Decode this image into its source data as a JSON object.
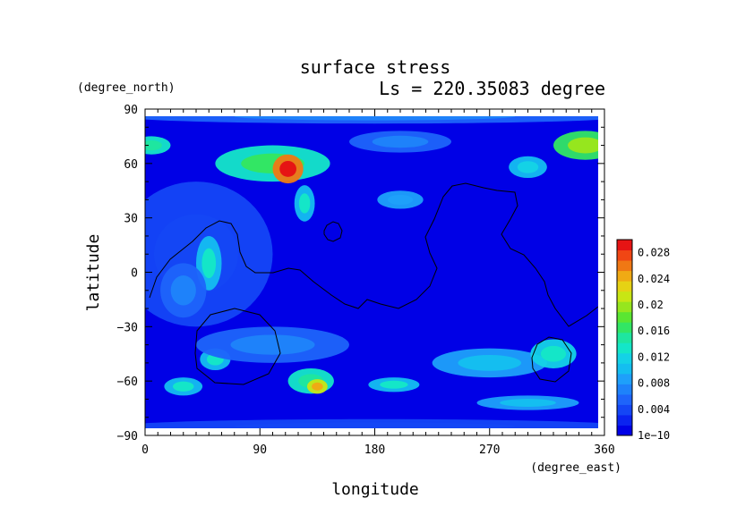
{
  "chart_data": {
    "type": "heatmap",
    "title": "surface stress",
    "subtitle": "Ls = 220.35083 degree",
    "xlabel": "longitude",
    "ylabel": "latitude",
    "x_unit": "(degree_east)",
    "y_unit": "(degree_north)",
    "xlim": [
      0,
      360
    ],
    "ylim": [
      -90,
      90
    ],
    "x_ticks": [
      "0",
      "90",
      "180",
      "270",
      "360"
    ],
    "y_ticks": [
      "90",
      "60",
      "30",
      "0",
      "−30",
      "−60",
      "−90"
    ],
    "colorbar": {
      "min": 1e-10,
      "max": 0.03,
      "tick_labels": [
        "1e−10",
        "0.004",
        "0.008",
        "0.012",
        "0.016",
        "0.02",
        "0.024",
        "0.028"
      ],
      "colors": [
        "#0000e6",
        "#0a23f0",
        "#1446f5",
        "#1e64fa",
        "#1e82fa",
        "#1ea0fa",
        "#14bef0",
        "#14d2e6",
        "#14e6c8",
        "#1ee6a0",
        "#32e664",
        "#5ae632",
        "#96e61e",
        "#c8e614",
        "#e6d214",
        "#f0aa14",
        "#f07814",
        "#f04614",
        "#e61414"
      ]
    },
    "field_blobs": [
      {
        "lon": 180,
        "lat": 0,
        "rx": 200,
        "ry": 100,
        "value": 0.0015
      },
      {
        "lon": 40,
        "lat": 10,
        "rx": 60,
        "ry": 40,
        "value": 0.0035
      },
      {
        "lon": 100,
        "lat": 60,
        "rx": 45,
        "ry": 10,
        "value": 0.014
      },
      {
        "lon": 112,
        "lat": 57,
        "rx": 12,
        "ry": 8,
        "value": 0.026
      },
      {
        "lon": 125,
        "lat": 38,
        "rx": 8,
        "ry": 10,
        "value": 0.011
      },
      {
        "lon": 5,
        "lat": 70,
        "rx": 15,
        "ry": 5,
        "value": 0.013
      },
      {
        "lon": 345,
        "lat": 70,
        "rx": 25,
        "ry": 8,
        "value": 0.017
      },
      {
        "lon": 200,
        "lat": 72,
        "rx": 40,
        "ry": 6,
        "value": 0.006
      },
      {
        "lon": 300,
        "lat": 58,
        "rx": 15,
        "ry": 6,
        "value": 0.01
      },
      {
        "lon": 200,
        "lat": 40,
        "rx": 18,
        "ry": 5,
        "value": 0.008
      },
      {
        "lon": 50,
        "lat": 5,
        "rx": 10,
        "ry": 15,
        "value": 0.011
      },
      {
        "lon": 30,
        "lat": -10,
        "rx": 18,
        "ry": 15,
        "value": 0.006
      },
      {
        "lon": 30,
        "lat": -63,
        "rx": 15,
        "ry": 5,
        "value": 0.011
      },
      {
        "lon": 55,
        "lat": -48,
        "rx": 12,
        "ry": 6,
        "value": 0.011
      },
      {
        "lon": 130,
        "lat": -60,
        "rx": 18,
        "ry": 7,
        "value": 0.013
      },
      {
        "lon": 135,
        "lat": -63,
        "rx": 8,
        "ry": 4,
        "value": 0.021
      },
      {
        "lon": 195,
        "lat": -62,
        "rx": 20,
        "ry": 4,
        "value": 0.011
      },
      {
        "lon": 270,
        "lat": -50,
        "rx": 45,
        "ry": 8,
        "value": 0.009
      },
      {
        "lon": 320,
        "lat": -45,
        "rx": 18,
        "ry": 8,
        "value": 0.012
      },
      {
        "lon": 300,
        "lat": -72,
        "rx": 40,
        "ry": 4,
        "value": 0.009
      },
      {
        "lon": 100,
        "lat": -40,
        "rx": 60,
        "ry": 10,
        "value": 0.006
      },
      {
        "lon": 180,
        "lat": -85,
        "rx": 200,
        "ry": 4,
        "value": 0.004
      },
      {
        "lon": 180,
        "lat": 86,
        "rx": 200,
        "ry": 4,
        "value": 0.006
      }
    ]
  }
}
